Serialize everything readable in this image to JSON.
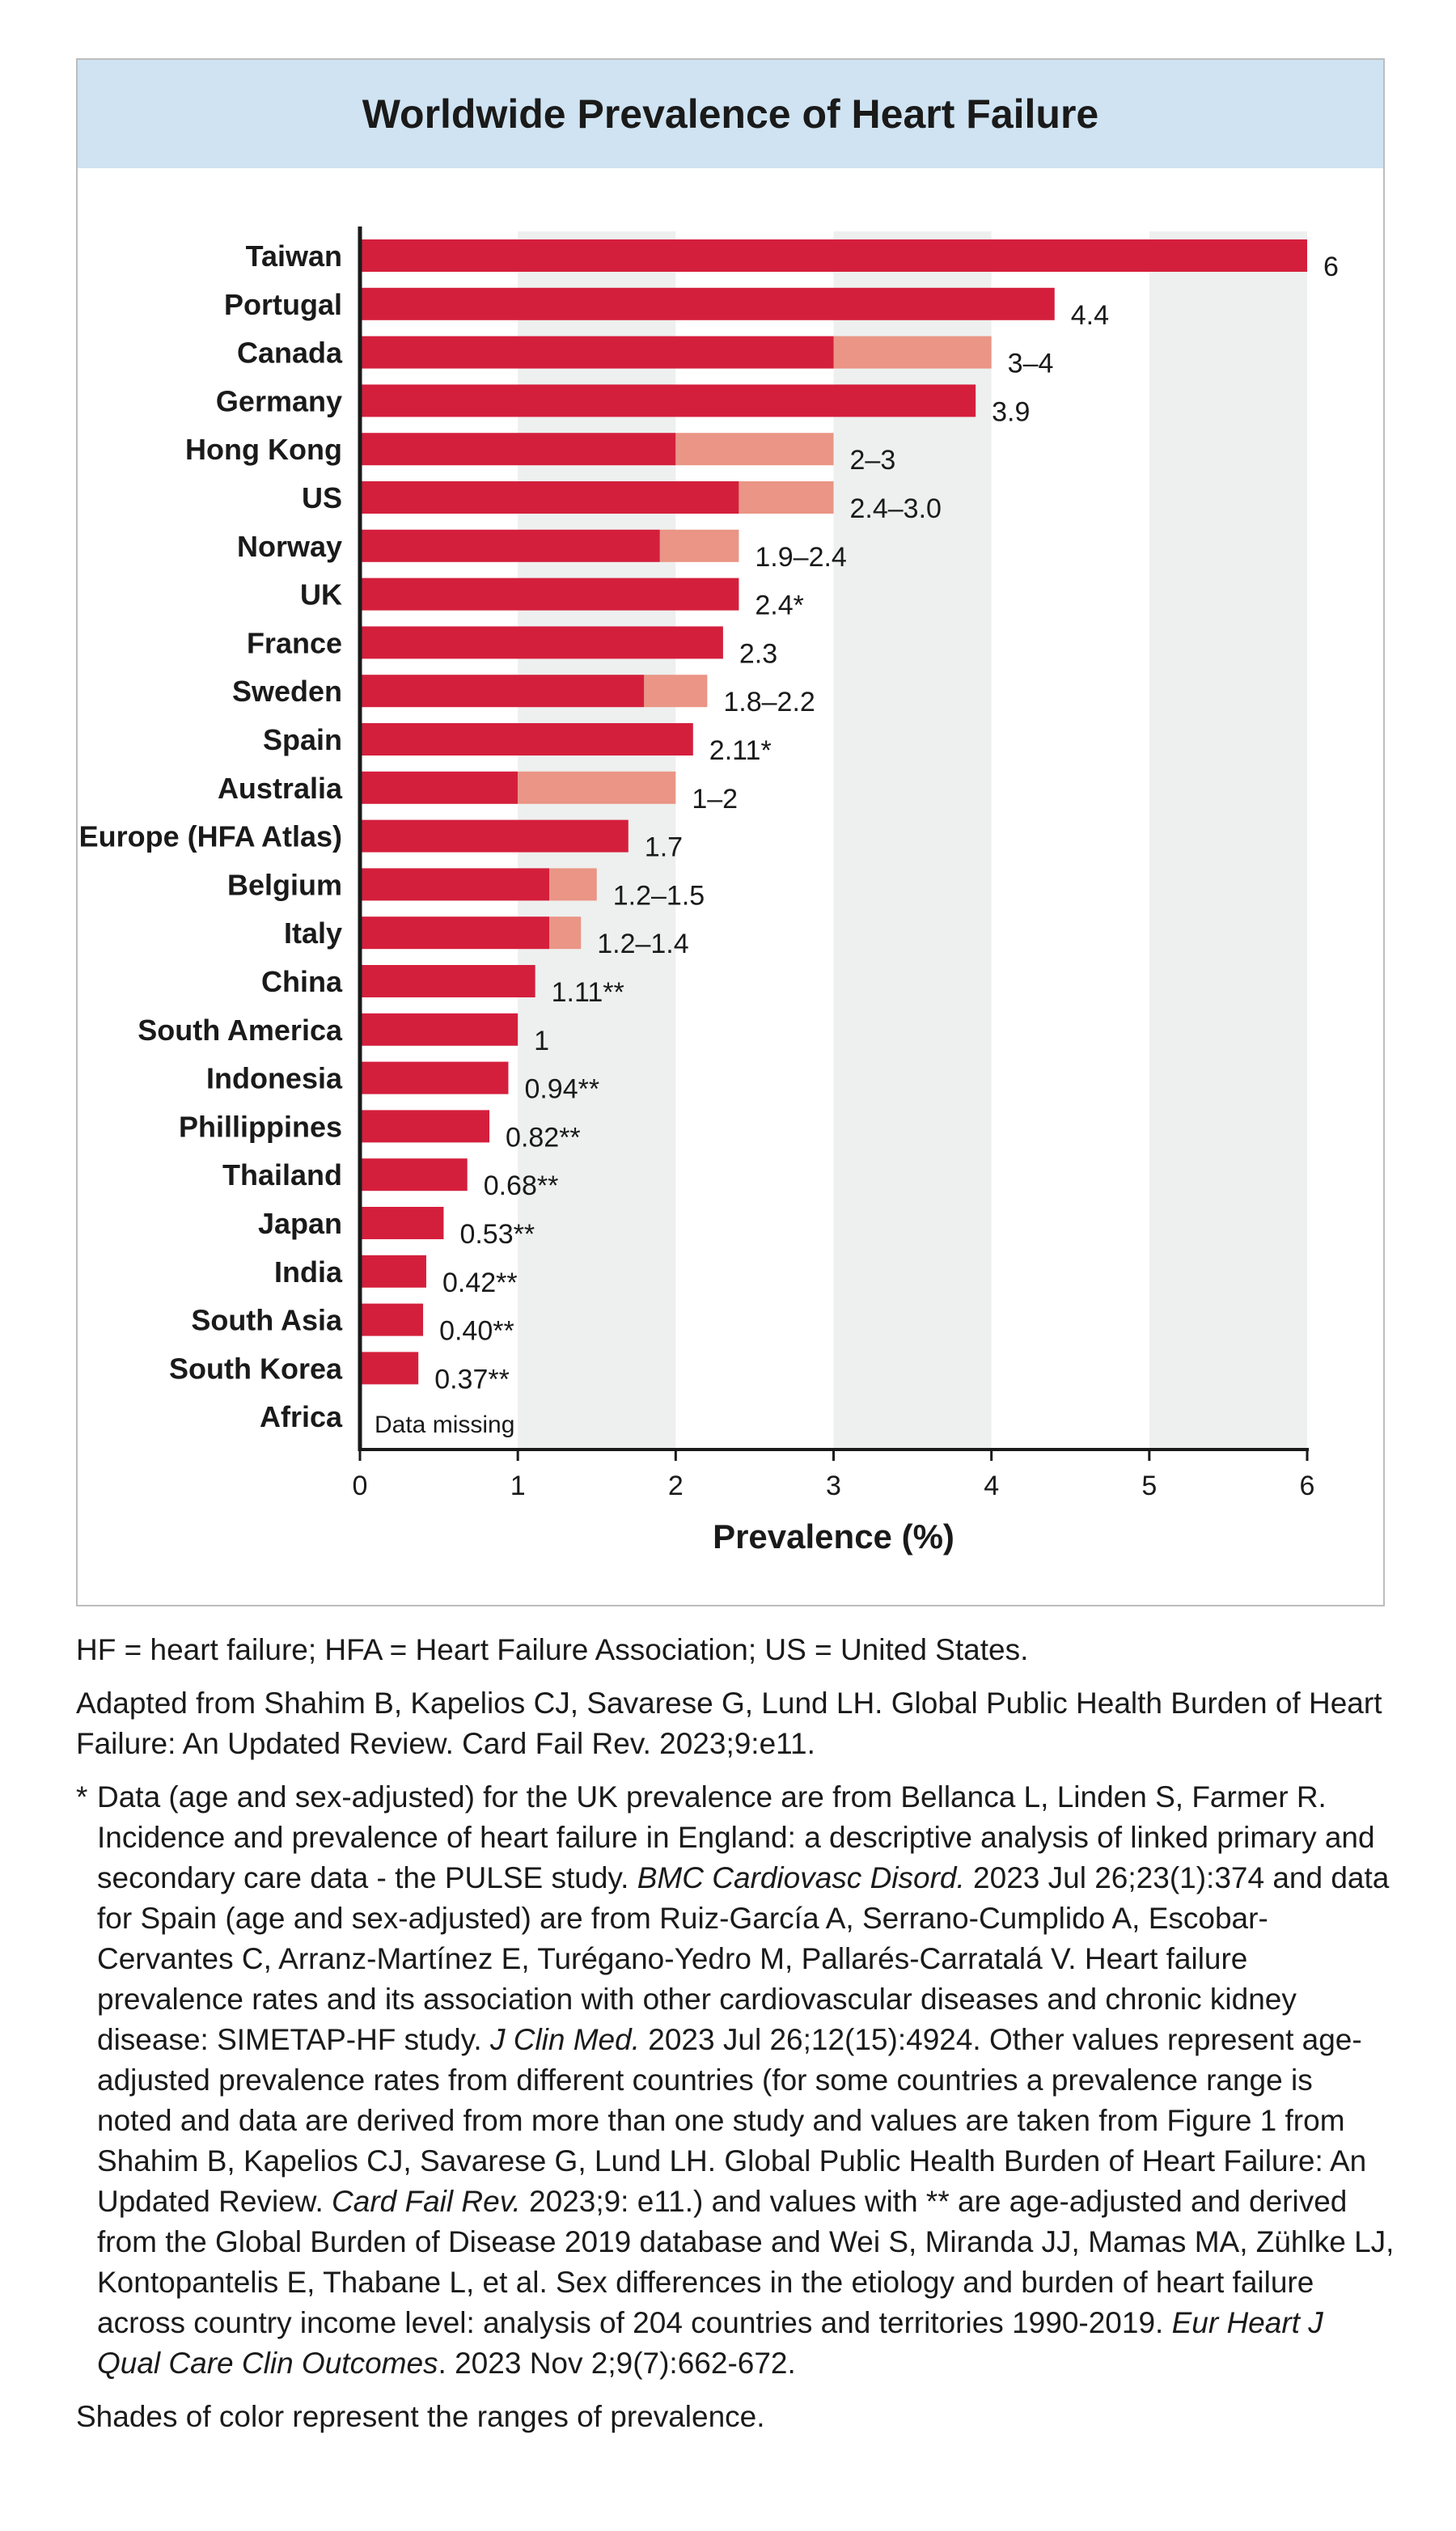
{
  "chart_data": {
    "type": "bar",
    "orientation": "horizontal",
    "title": "Worldwide Prevalence of Heart Failure",
    "xlabel": "Prevalence (%)",
    "xlim": [
      0,
      6
    ],
    "x_ticks": [
      "0",
      "1",
      "2",
      "3",
      "4",
      "5",
      "6"
    ],
    "colors": {
      "base": "#d41f3c",
      "range": "#ea9585",
      "band": "#eef0ef",
      "axis": "#1a1a1a"
    },
    "categories": [
      {
        "name": "Taiwan",
        "value": 6,
        "range_to": null,
        "label": "6"
      },
      {
        "name": "Portugal",
        "value": 4.4,
        "range_to": null,
        "label": "4.4"
      },
      {
        "name": "Canada",
        "value": 3,
        "range_to": 4,
        "label": "3–4"
      },
      {
        "name": "Germany",
        "value": 3.9,
        "range_to": null,
        "label": "3.9"
      },
      {
        "name": "Hong Kong",
        "value": 2,
        "range_to": 3,
        "label": "2–3"
      },
      {
        "name": "US",
        "value": 2.4,
        "range_to": 3.0,
        "label": "2.4–3.0"
      },
      {
        "name": "Norway",
        "value": 1.9,
        "range_to": 2.4,
        "label": "1.9–2.4"
      },
      {
        "name": "UK",
        "value": 2.4,
        "range_to": null,
        "label": "2.4*"
      },
      {
        "name": "France",
        "value": 2.3,
        "range_to": null,
        "label": "2.3"
      },
      {
        "name": "Sweden",
        "value": 1.8,
        "range_to": 2.2,
        "label": "1.8–2.2"
      },
      {
        "name": "Spain",
        "value": 2.11,
        "range_to": null,
        "label": "2.11*"
      },
      {
        "name": "Australia",
        "value": 1,
        "range_to": 2,
        "label": "1–2"
      },
      {
        "name": "Europe (HFA Atlas)",
        "value": 1.7,
        "range_to": null,
        "label": "1.7"
      },
      {
        "name": "Belgium",
        "value": 1.2,
        "range_to": 1.5,
        "label": "1.2–1.5"
      },
      {
        "name": "Italy",
        "value": 1.2,
        "range_to": 1.4,
        "label": "1.2–1.4"
      },
      {
        "name": "China",
        "value": 1.11,
        "range_to": null,
        "label": "1.11**"
      },
      {
        "name": "South America",
        "value": 1,
        "range_to": null,
        "label": "1"
      },
      {
        "name": "Indonesia",
        "value": 0.94,
        "range_to": null,
        "label": "0.94**"
      },
      {
        "name": "Phillippines",
        "value": 0.82,
        "range_to": null,
        "label": "0.82**"
      },
      {
        "name": "Thailand",
        "value": 0.68,
        "range_to": null,
        "label": "0.68**"
      },
      {
        "name": "Japan",
        "value": 0.53,
        "range_to": null,
        "label": "0.53**"
      },
      {
        "name": "India",
        "value": 0.42,
        "range_to": null,
        "label": "0.42**"
      },
      {
        "name": "South Asia",
        "value": 0.4,
        "range_to": null,
        "label": "0.40**"
      },
      {
        "name": "South Korea",
        "value": 0.37,
        "range_to": null,
        "label": "0.37**"
      },
      {
        "name": "Africa",
        "value": null,
        "range_to": null,
        "label": "Data missing"
      }
    ]
  },
  "notes": {
    "abbreviations": "HF = heart failure; HFA = Heart Failure Association; US = United States.",
    "adapted": "Adapted from Shahim B, Kapelios CJ, Savarese G, Lund LH. Global Public Health Burden of Heart Failure: An Updated Review. Card Fail Rev. 2023;9:e11.",
    "star_mark": "*",
    "star_1": "Data (age and sex-adjusted) for the UK prevalence are from Bellanca L, Linden S, Farmer R. Incidence and prevalence of heart failure in England: a descriptive analysis of linked primary and secondary care data - the PULSE study. ",
    "star_journal_1": "BMC Cardiovasc Disord.",
    "star_2": " 2023 Jul 26;23(1):374 and data for Spain (age and sex-adjusted) are from Ruiz-García A, Serrano-Cumplido A, Escobar-Cervantes C, Arranz-Martínez E, Turégano-Yedro M, Pallarés-Carratalá V. Heart failure prevalence rates and its association with other cardiovascular diseases and chronic kidney disease: SIMETAP-HF study. ",
    "star_journal_2": "J Clin Med.",
    "star_3": " 2023 Jul 26;12(15):4924. Other values represent age-adjusted prevalence rates from different countries (for some countries a prevalence range is noted and data are derived from more than one study and values are taken from Figure 1 from Shahim B, Kapelios CJ, Savarese G, Lund LH. Global Public Health Burden of Heart Failure: An Updated Review. ",
    "star_journal_3": "Card Fail Rev.",
    "star_4": " 2023;9: e11.) and values with ** are age-adjusted and derived from the Global Burden of Disease 2019 database and Wei S, Miranda JJ, Mamas MA, Zühlke LJ, Kontopantelis E, Thabane L, et al. Sex differences in the etiology and burden of heart failure across country income level: analysis of 204 countries and territories 1990-2019. ",
    "star_journal_4": "Eur Heart J Qual Care Clin Outcomes",
    "star_5": ". 2023 Nov 2;9(7):662-672.",
    "shades": "Shades of color represent the ranges of prevalence."
  }
}
